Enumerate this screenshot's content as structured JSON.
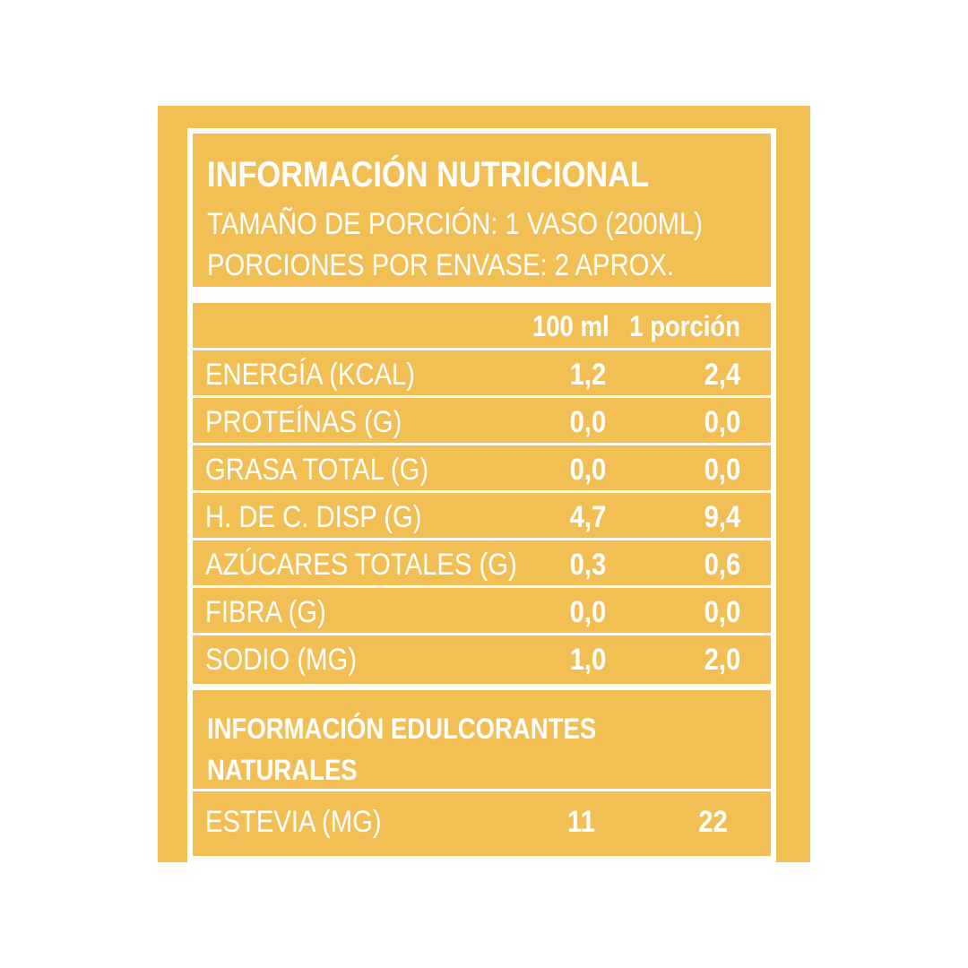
{
  "header": {
    "title": "INFORMACIÓN NUTRICIONAL",
    "serving_size": "TAMAÑO DE PORCIÓN: 1 VASO (200ML)",
    "servings_per_container": "PORCIONES POR ENVASE: 2 APROX."
  },
  "table": {
    "columns": [
      "100 ml",
      "1 porción"
    ],
    "rows": [
      {
        "label": "ENERGÍA (KCAL)",
        "per_100ml": "1,2",
        "per_portion": "2,4"
      },
      {
        "label": "PROTEÍNAS (G)",
        "per_100ml": "0,0",
        "per_portion": "0,0"
      },
      {
        "label": "GRASA TOTAL (G)",
        "per_100ml": "0,0",
        "per_portion": "0,0"
      },
      {
        "label": "H. DE C. DISP (G)",
        "per_100ml": "4,7",
        "per_portion": "9,4"
      },
      {
        "label": "AZÚCARES TOTALES (G)",
        "per_100ml": "0,3",
        "per_portion": "0,6"
      },
      {
        "label": "FIBRA (G)",
        "per_100ml": "0,0",
        "per_portion": "0,0"
      },
      {
        "label": "SODIO (MG)",
        "per_100ml": "1,0",
        "per_portion": "2,0"
      }
    ]
  },
  "sweeteners": {
    "title_line1": "INFORMACIÓN EDULCORANTES",
    "title_line2": "NATURALES",
    "rows": [
      {
        "label": "ESTEVIA (MG)",
        "per_100ml": "11",
        "per_portion": "22"
      }
    ]
  },
  "colors": {
    "background": "#F2BF55",
    "text": "#FFFFFF"
  }
}
